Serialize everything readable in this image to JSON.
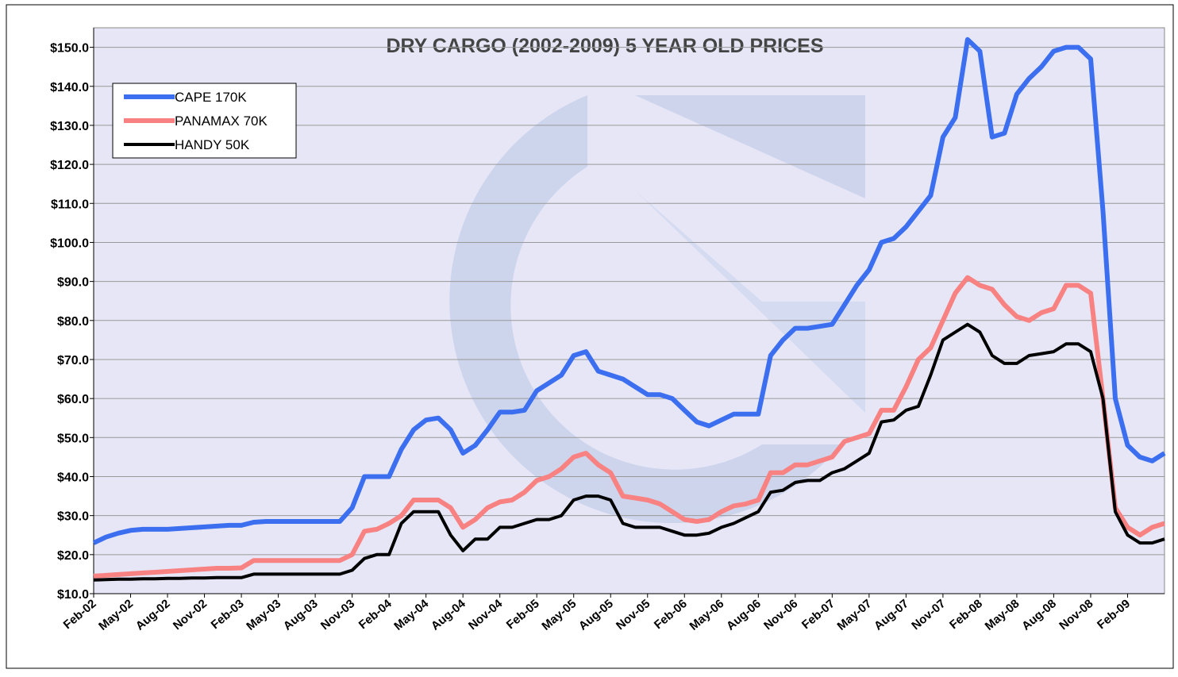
{
  "chart_data": {
    "type": "line",
    "title": "DRY CARGO (2002-2009) 5 YEAR OLD PRICES",
    "categories": [
      "Feb-02",
      null,
      null,
      "May-02",
      null,
      null,
      "Aug-02",
      null,
      null,
      "Nov-02",
      null,
      null,
      "Feb-03",
      null,
      null,
      "May-03",
      null,
      null,
      "Aug-03",
      null,
      null,
      "Nov-03",
      null,
      null,
      "Feb-04",
      null,
      null,
      "May-04",
      null,
      null,
      "Aug-04",
      null,
      null,
      "Nov-04",
      null,
      null,
      "Feb-05",
      null,
      null,
      "May-05",
      null,
      null,
      "Aug-05",
      null,
      null,
      "Nov-05",
      null,
      null,
      "Feb-06",
      null,
      null,
      "May-06",
      null,
      null,
      "Aug-06",
      null,
      null,
      "Nov-06",
      null,
      null,
      "Feb-07",
      null,
      null,
      "May-07",
      null,
      null,
      "Aug-07",
      null,
      null,
      "Nov-07",
      null,
      null,
      "Feb-08",
      null,
      null,
      "May-08",
      null,
      null,
      "Aug-08",
      null,
      null,
      "Nov-08",
      null,
      null,
      "Feb-09",
      null,
      null,
      null
    ],
    "series": [
      {
        "name": "CAPE 170K",
        "color": "#3b6ff0",
        "values": [
          23,
          24.5,
          25.5,
          26.2,
          26.5,
          26.5,
          26.5,
          26.7,
          26.9,
          27.1,
          27.3,
          27.5,
          27.5,
          28.3,
          28.5,
          28.5,
          28.5,
          28.5,
          28.5,
          28.5,
          28.5,
          32,
          40,
          40,
          40,
          47,
          52,
          54.5,
          55,
          52,
          46,
          48,
          52,
          56.5,
          56.5,
          57,
          62,
          64,
          66,
          71,
          72,
          67,
          66,
          65,
          63,
          61,
          61,
          60,
          57,
          54,
          53,
          54.5,
          56,
          56,
          56,
          71,
          75,
          78,
          78,
          78.5,
          79,
          84,
          89,
          93,
          100,
          101,
          104,
          108,
          112,
          127,
          132,
          152,
          149,
          127,
          128,
          138,
          142,
          145,
          149,
          150,
          150,
          147,
          108,
          60,
          48,
          45,
          44,
          46
        ]
      },
      {
        "name": "PANAMAX 70K",
        "color": "#f88282",
        "values": [
          14.5,
          14.7,
          14.9,
          15.1,
          15.3,
          15.5,
          15.7,
          15.9,
          16.1,
          16.3,
          16.5,
          16.5,
          16.6,
          18.5,
          18.5,
          18.5,
          18.5,
          18.5,
          18.5,
          18.5,
          18.5,
          20,
          26,
          26.5,
          28,
          30,
          34,
          34,
          34,
          32,
          27,
          29,
          32,
          33.5,
          34,
          36,
          39,
          40,
          42,
          45,
          46,
          43,
          41,
          35,
          34.5,
          34,
          33,
          31,
          29,
          28.5,
          29,
          31,
          32.5,
          33,
          34,
          41,
          41,
          43,
          43,
          44,
          45,
          49,
          50,
          51,
          57,
          57,
          63,
          70,
          73,
          80,
          87,
          91,
          89,
          88,
          84,
          81,
          80,
          82,
          83,
          89,
          89,
          87,
          60,
          32,
          27,
          25,
          27,
          28
        ]
      },
      {
        "name": "HANDY 50K",
        "color": "#000000",
        "values": [
          13.5,
          13.6,
          13.7,
          13.7,
          13.8,
          13.8,
          13.9,
          13.9,
          14,
          14,
          14.1,
          14.1,
          14.1,
          15,
          15,
          15,
          15,
          15,
          15,
          15,
          15,
          16,
          19,
          20,
          20,
          28,
          31,
          31,
          31,
          25,
          21,
          24,
          24,
          27,
          27,
          28,
          29,
          29,
          30,
          34,
          35,
          35,
          34,
          28,
          27,
          27,
          27,
          26,
          25,
          25,
          25.5,
          27,
          28,
          29.5,
          31,
          36,
          36.5,
          38.5,
          39,
          39,
          41,
          42,
          44,
          46,
          54,
          54.5,
          57,
          58,
          66,
          75,
          77,
          79,
          77,
          71,
          69,
          69,
          71,
          71.5,
          72,
          74,
          74,
          72,
          60,
          31,
          25,
          23,
          23,
          24
        ]
      }
    ],
    "ylim": [
      10,
      155
    ],
    "yticks": [
      {
        "value": 10,
        "label": "$10.0"
      },
      {
        "value": 20,
        "label": "$20.0"
      },
      {
        "value": 30,
        "label": "$30.0"
      },
      {
        "value": 40,
        "label": "$40.0"
      },
      {
        "value": 50,
        "label": "$50.0"
      },
      {
        "value": 60,
        "label": "$60.0"
      },
      {
        "value": 70,
        "label": "$70.0"
      },
      {
        "value": 80,
        "label": "$80.0"
      },
      {
        "value": 90,
        "label": "$90.0"
      },
      {
        "value": 100,
        "label": "$100.0"
      },
      {
        "value": 110,
        "label": "$110.0"
      },
      {
        "value": 120,
        "label": "$120.0"
      },
      {
        "value": 130,
        "label": "$130.0"
      },
      {
        "value": 140,
        "label": "$140.0"
      },
      {
        "value": 150,
        "label": "$150.0"
      }
    ],
    "grid": true,
    "legend": "top-left"
  }
}
